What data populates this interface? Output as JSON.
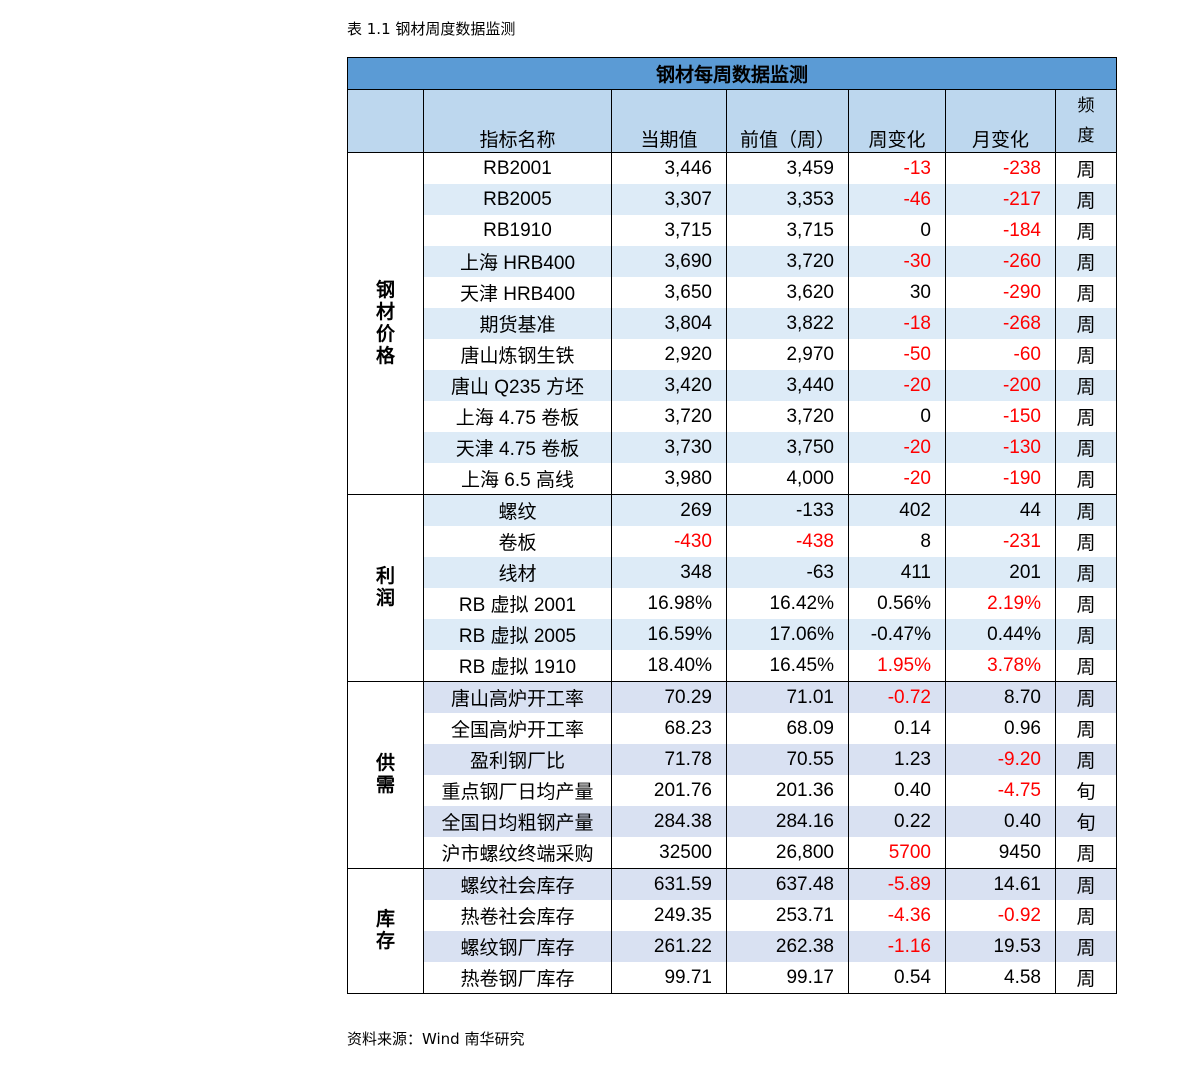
{
  "caption": "表 1.1 钢材周度数据监测",
  "source": "资料来源：Wind 南华研究",
  "table_title": "钢材每周数据监测",
  "headers": {
    "name": "指标名称",
    "current": "当期值",
    "previous": "前值（周）",
    "weekly_change": "周变化",
    "monthly_change": "月变化",
    "frequency": "频度"
  },
  "sections": [
    {
      "label": "钢材价格",
      "rows": [
        {
          "name": "RB2001",
          "cur": "3,446",
          "prev": "3,459",
          "wk": "-13",
          "mo": "-238",
          "freq": "周"
        },
        {
          "name": "RB2005",
          "cur": "3,307",
          "prev": "3,353",
          "wk": "-46",
          "mo": "-217",
          "freq": "周"
        },
        {
          "name": "RB1910",
          "cur": "3,715",
          "prev": "3,715",
          "wk": "0",
          "mo": "-184",
          "freq": "周"
        },
        {
          "name": "上海 HRB400",
          "cur": "3,690",
          "prev": "3,720",
          "wk": "-30",
          "mo": "-260",
          "freq": "周"
        },
        {
          "name": "天津 HRB400",
          "cur": "3,650",
          "prev": "3,620",
          "wk": "30",
          "mo": "-290",
          "freq": "周"
        },
        {
          "name": "期货基准",
          "cur": "3,804",
          "prev": "3,822",
          "wk": "-18",
          "mo": "-268",
          "freq": "周"
        },
        {
          "name": "唐山炼钢生铁",
          "cur": "2,920",
          "prev": "2,970",
          "wk": "-50",
          "mo": "-60",
          "freq": "周"
        },
        {
          "name": "唐山 Q235 方坯",
          "cur": "3,420",
          "prev": "3,440",
          "wk": "-20",
          "mo": "-200",
          "freq": "周"
        },
        {
          "name": "上海 4.75 卷板",
          "cur": "3,720",
          "prev": "3,720",
          "wk": "0",
          "mo": "-150",
          "freq": "周"
        },
        {
          "name": "天津 4.75 卷板",
          "cur": "3,730",
          "prev": "3,750",
          "wk": "-20",
          "mo": "-130",
          "freq": "周"
        },
        {
          "name": "上海 6.5 高线",
          "cur": "3,980",
          "prev": "4,000",
          "wk": "-20",
          "mo": "-190",
          "freq": "周"
        }
      ]
    },
    {
      "label": "利润",
      "rows": [
        {
          "name": "螺纹",
          "cur": "269",
          "prev": "-133",
          "wk": "402",
          "mo": "44",
          "freq": "周"
        },
        {
          "name": "卷板",
          "cur": "-430",
          "prev": "-438",
          "wk": "8",
          "mo": "-231",
          "freq": "周"
        },
        {
          "name": "线材",
          "cur": "348",
          "prev": "-63",
          "wk": "411",
          "mo": "201",
          "freq": "周"
        },
        {
          "name": "RB 虚拟 2001",
          "cur": "16.98%",
          "prev": "16.42%",
          "wk": "0.56%",
          "mo": "2.19%",
          "freq": "周"
        },
        {
          "name": "RB 虚拟 2005",
          "cur": "16.59%",
          "prev": "17.06%",
          "wk": "-0.47%",
          "mo": "0.44%",
          "freq": "周"
        },
        {
          "name": "RB 虚拟 1910",
          "cur": "18.40%",
          "prev": "16.45%",
          "wk": "1.95%",
          "mo": "3.78%",
          "freq": "周"
        }
      ]
    },
    {
      "label": "供需",
      "rows": [
        {
          "name": "唐山高炉开工率",
          "cur": "70.29",
          "prev": "71.01",
          "wk": "-0.72",
          "mo": "8.70",
          "freq": "周"
        },
        {
          "name": "全国高炉开工率",
          "cur": "68.23",
          "prev": "68.09",
          "wk": "0.14",
          "mo": "0.96",
          "freq": "周"
        },
        {
          "name": "盈利钢厂比",
          "cur": "71.78",
          "prev": "70.55",
          "wk": "1.23",
          "mo": "-9.20",
          "freq": "周"
        },
        {
          "name": "重点钢厂日均产量",
          "cur": "201.76",
          "prev": "201.36",
          "wk": "0.40",
          "mo": "-4.75",
          "freq": "旬"
        },
        {
          "name": "全国日均粗钢产量",
          "cur": "284.38",
          "prev": "284.16",
          "wk": "0.22",
          "mo": "0.40",
          "freq": "旬"
        },
        {
          "name": "沪市螺纹终端采购",
          "cur": "32500",
          "prev": "26,800",
          "wk": "5700",
          "mo": "9450",
          "freq": "周"
        }
      ]
    },
    {
      "label": "库存",
      "rows": [
        {
          "name": "螺纹社会库存",
          "cur": "631.59",
          "prev": "637.48",
          "wk": "-5.89",
          "mo": "14.61",
          "freq": "周"
        },
        {
          "name": "热卷社会库存",
          "cur": "249.35",
          "prev": "253.71",
          "wk": "-4.36",
          "mo": "-0.92",
          "freq": "周"
        },
        {
          "name": "螺纹钢厂库存",
          "cur": "261.22",
          "prev": "262.38",
          "wk": "-1.16",
          "mo": "19.53",
          "freq": "周"
        },
        {
          "name": "热卷钢厂库存",
          "cur": "99.71",
          "prev": "99.17",
          "wk": "0.54",
          "mo": "4.58",
          "freq": "周"
        }
      ]
    }
  ],
  "colors": {
    "title_bg": "#5b9bd5",
    "header_bg": "#bdd7ee",
    "shade_blue": "#ddebf7",
    "shade_lavender": "#d9e1f2",
    "negative": "#ff0000"
  },
  "red_cells": [
    {
      "s": 0,
      "cols": {
        "wk": [
          0,
          1,
          3,
          5,
          6,
          7,
          9,
          10
        ],
        "mo": [
          0,
          1,
          2,
          3,
          4,
          5,
          6,
          7,
          8,
          9,
          10
        ]
      }
    },
    {
      "s": 1,
      "cols": {
        "cur": [
          1
        ],
        "prev": [
          1
        ],
        "wk": [
          5
        ],
        "mo": [
          1,
          3,
          5
        ]
      }
    },
    {
      "s": 2,
      "cols": {
        "wk": [
          0,
          5
        ],
        "mo": [
          2,
          3
        ]
      }
    },
    {
      "s": 3,
      "cols": {
        "wk": [
          0,
          1,
          2
        ],
        "mo": [
          1
        ]
      }
    }
  ]
}
